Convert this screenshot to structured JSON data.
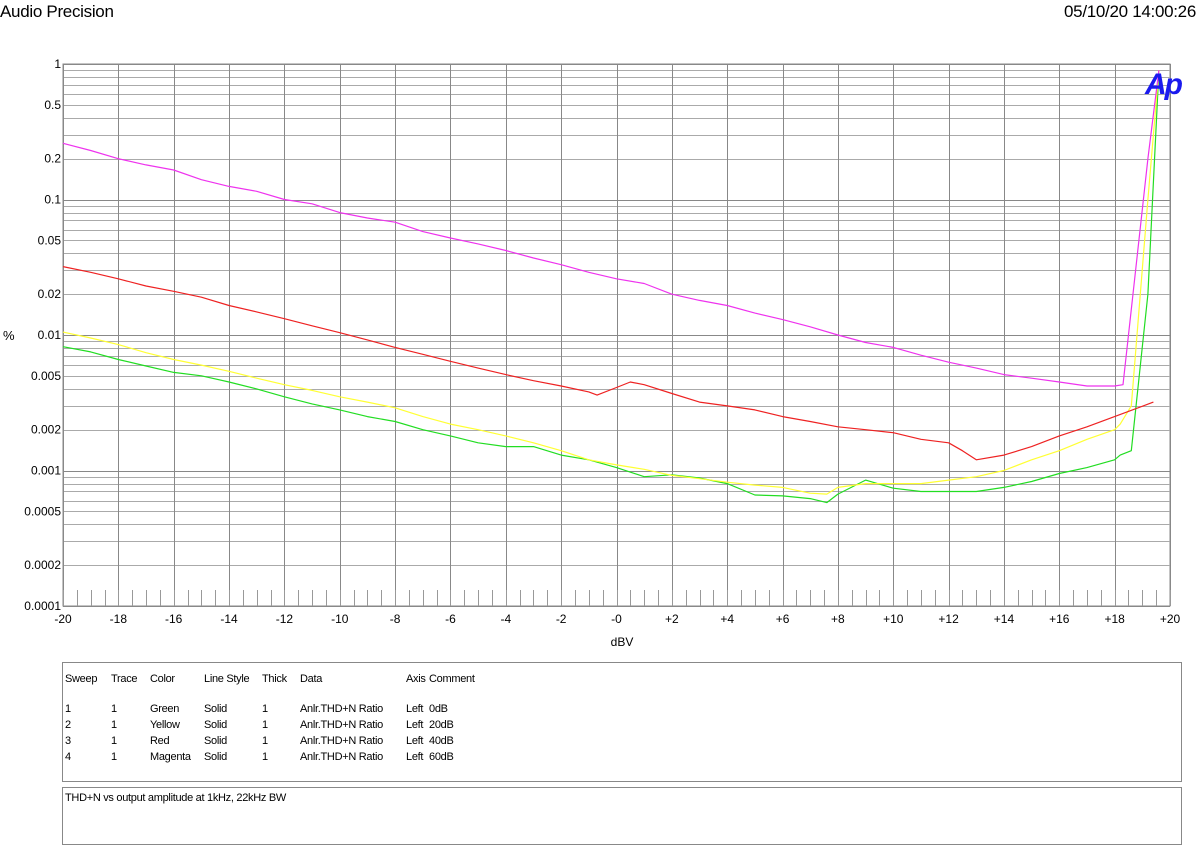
{
  "header": {
    "title": "Audio Precision",
    "timestamp": "05/10/20 14:00:26"
  },
  "logo_text": "Ap",
  "colors": {
    "Green": "#22dd22",
    "Yellow": "#ffff33",
    "Red": "#ee2222",
    "Magenta": "#ee33ee",
    "logo": "#1a1aee"
  },
  "chart_data": {
    "type": "line",
    "title": "",
    "xlabel": "dBV",
    "ylabel": "%",
    "xlim": [
      -20,
      20
    ],
    "ylim": [
      0.0001,
      1
    ],
    "y_scale": "log",
    "grid": true,
    "x_ticks": [
      {
        "v": -20,
        "label": "-20"
      },
      {
        "v": -18,
        "label": "-18"
      },
      {
        "v": -16,
        "label": "-16"
      },
      {
        "v": -14,
        "label": "-14"
      },
      {
        "v": -12,
        "label": "-12"
      },
      {
        "v": -10,
        "label": "-10"
      },
      {
        "v": -8,
        "label": "-8"
      },
      {
        "v": -6,
        "label": "-6"
      },
      {
        "v": -4,
        "label": "-4"
      },
      {
        "v": -2,
        "label": "-2"
      },
      {
        "v": 0,
        "label": "-0"
      },
      {
        "v": 2,
        "label": "+2"
      },
      {
        "v": 4,
        "label": "+4"
      },
      {
        "v": 6,
        "label": "+6"
      },
      {
        "v": 8,
        "label": "+8"
      },
      {
        "v": 10,
        "label": "+10"
      },
      {
        "v": 12,
        "label": "+12"
      },
      {
        "v": 14,
        "label": "+14"
      },
      {
        "v": 16,
        "label": "+16"
      },
      {
        "v": 18,
        "label": "+18"
      },
      {
        "v": 20,
        "label": "+20"
      }
    ],
    "y_ticks": [
      {
        "v": 1,
        "label": "1"
      },
      {
        "v": 0.5,
        "label": "0.5"
      },
      {
        "v": 0.2,
        "label": "0.2"
      },
      {
        "v": 0.1,
        "label": "0.1"
      },
      {
        "v": 0.05,
        "label": "0.05"
      },
      {
        "v": 0.02,
        "label": "0.02"
      },
      {
        "v": 0.01,
        "label": "0.01"
      },
      {
        "v": 0.005,
        "label": "0.005"
      },
      {
        "v": 0.002,
        "label": "0.002"
      },
      {
        "v": 0.001,
        "label": "0.001"
      },
      {
        "v": 0.0005,
        "label": "0.0005"
      },
      {
        "v": 0.0002,
        "label": "0.0002"
      },
      {
        "v": 0.0001,
        "label": "0.0001"
      }
    ],
    "series": [
      {
        "name": "Green",
        "color": "#22dd22",
        "x": [
          -20,
          -19,
          -18,
          -17,
          -16,
          -15,
          -14,
          -13,
          -12,
          -11,
          -10,
          -9,
          -8,
          -7,
          -6,
          -5,
          -4,
          -3,
          -2,
          -1,
          0,
          1,
          2,
          3,
          4,
          5,
          6,
          7,
          7.6,
          8,
          9,
          10,
          11,
          12,
          13,
          14,
          15,
          16,
          17,
          18,
          18.2,
          18.6,
          19.2,
          19.6
        ],
        "y": [
          0.0082,
          0.0075,
          0.0066,
          0.0059,
          0.0053,
          0.005,
          0.0045,
          0.004,
          0.0035,
          0.0031,
          0.0028,
          0.0025,
          0.0023,
          0.002,
          0.0018,
          0.0016,
          0.0015,
          0.0015,
          0.0013,
          0.0012,
          0.00105,
          0.0009,
          0.00093,
          0.00088,
          0.0008,
          0.00066,
          0.00065,
          0.00062,
          0.00058,
          0.00067,
          0.00085,
          0.00074,
          0.0007,
          0.0007,
          0.0007,
          0.00075,
          0.00083,
          0.00095,
          0.00105,
          0.0012,
          0.0013,
          0.0014,
          0.02,
          0.9
        ]
      },
      {
        "name": "Yellow",
        "color": "#ffff33",
        "x": [
          -20,
          -19,
          -18,
          -17,
          -16,
          -15,
          -14,
          -13,
          -12,
          -11,
          -10,
          -9,
          -8,
          -7,
          -6,
          -5,
          -4,
          -3,
          -2,
          -1,
          0,
          1,
          2,
          3,
          4,
          5,
          6,
          7,
          7.6,
          8,
          9,
          10,
          11,
          12,
          13,
          14,
          15,
          16,
          17,
          18,
          18.2,
          18.6,
          19.2,
          19.6
        ],
        "y": [
          0.0105,
          0.0095,
          0.0085,
          0.0074,
          0.0066,
          0.006,
          0.0054,
          0.0048,
          0.0043,
          0.0039,
          0.0035,
          0.0032,
          0.0029,
          0.0025,
          0.0022,
          0.002,
          0.0018,
          0.0016,
          0.0014,
          0.0012,
          0.0011,
          0.00102,
          0.00092,
          0.00087,
          0.00082,
          0.00078,
          0.00075,
          0.00068,
          0.00067,
          0.00075,
          0.0008,
          0.0008,
          0.0008,
          0.00085,
          0.0009,
          0.001,
          0.0012,
          0.0014,
          0.0017,
          0.002,
          0.0022,
          0.003,
          0.1,
          0.9
        ]
      },
      {
        "name": "Red",
        "color": "#ee2222",
        "x": [
          -20,
          -19,
          -18,
          -17,
          -16,
          -15,
          -14,
          -13,
          -12,
          -11,
          -10,
          -9,
          -8,
          -7,
          -6,
          -5,
          -4,
          -3,
          -2,
          -1,
          -0.7,
          0,
          0.5,
          1,
          2,
          3,
          4,
          5,
          6,
          7,
          8,
          9,
          10,
          11,
          12,
          12.5,
          13,
          14,
          15,
          16,
          17,
          18,
          19.4
        ],
        "y": [
          0.032,
          0.029,
          0.026,
          0.023,
          0.021,
          0.019,
          0.0165,
          0.0148,
          0.0132,
          0.0117,
          0.0104,
          0.0092,
          0.0081,
          0.0072,
          0.0064,
          0.0057,
          0.0051,
          0.0046,
          0.0042,
          0.0038,
          0.0036,
          0.0041,
          0.0045,
          0.0043,
          0.0037,
          0.0032,
          0.003,
          0.0028,
          0.0025,
          0.0023,
          0.0021,
          0.002,
          0.0019,
          0.0017,
          0.0016,
          0.0014,
          0.0012,
          0.0013,
          0.0015,
          0.0018,
          0.0021,
          0.0025,
          0.0032
        ]
      },
      {
        "name": "Magenta",
        "color": "#ee33ee",
        "x": [
          -20,
          -19,
          -18,
          -17,
          -16,
          -15,
          -14,
          -13,
          -12,
          -11,
          -10,
          -9,
          -8,
          -7,
          -6,
          -5,
          -4,
          -3,
          -2,
          -1,
          0,
          1,
          2,
          3,
          4,
          5,
          6,
          7,
          8,
          9,
          10,
          11,
          12,
          13,
          14,
          15,
          16,
          17,
          18,
          18.3,
          19.2,
          19.6
        ],
        "y": [
          0.26,
          0.23,
          0.2,
          0.18,
          0.165,
          0.14,
          0.125,
          0.115,
          0.1,
          0.093,
          0.08,
          0.073,
          0.068,
          0.058,
          0.052,
          0.047,
          0.042,
          0.037,
          0.033,
          0.029,
          0.026,
          0.024,
          0.02,
          0.018,
          0.0165,
          0.0145,
          0.013,
          0.0115,
          0.01,
          0.0088,
          0.0081,
          0.0071,
          0.0063,
          0.0057,
          0.0051,
          0.0048,
          0.0045,
          0.0042,
          0.0042,
          0.0043,
          0.2,
          0.9
        ]
      }
    ]
  },
  "legend_table": {
    "headers": [
      "Sweep",
      "Trace",
      "Color",
      "Line Style",
      "Thick",
      "Data",
      "Axis",
      "Comment"
    ],
    "rows": [
      [
        "1",
        "1",
        "Green",
        "Solid",
        "1",
        "Anlr.THD+N Ratio",
        "Left",
        "0dB"
      ],
      [
        "2",
        "1",
        "Yellow",
        "Solid",
        "1",
        "Anlr.THD+N Ratio",
        "Left",
        "20dB"
      ],
      [
        "3",
        "1",
        "Red",
        "Solid",
        "1",
        "Anlr.THD+N Ratio",
        "Left",
        "40dB"
      ],
      [
        "4",
        "1",
        "Magenta",
        "Solid",
        "1",
        "Anlr.THD+N Ratio",
        "Left",
        "60dB"
      ]
    ]
  },
  "comment": "THD+N vs output amplitude at 1kHz, 22kHz BW"
}
